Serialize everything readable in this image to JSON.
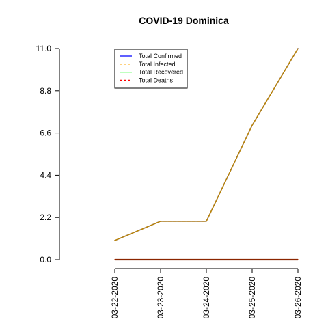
{
  "chart_data": {
    "type": "line",
    "title": "COVID-19 Dominica",
    "xlabel": "",
    "ylabel": "",
    "categories": [
      "03-22-2020",
      "03-23-2020",
      "03-24-2020",
      "03-25-2020",
      "03-26-2020"
    ],
    "ylim": [
      0,
      11
    ],
    "y_ticks": [
      "0.0",
      "2.2",
      "4.4",
      "6.6",
      "8.8",
      "11.0"
    ],
    "grid": false,
    "legend_position": "top-left",
    "series": [
      {
        "name": "Total Confirmed",
        "values": [
          1,
          2,
          2,
          7,
          11
        ],
        "color": "#0000ff",
        "dash": "solid"
      },
      {
        "name": "Total Infected",
        "values": [
          1,
          2,
          2,
          7,
          11
        ],
        "color": "#ffa500",
        "dash": "dashed"
      },
      {
        "name": "Total Recovered",
        "values": [
          0,
          0,
          0,
          0,
          0
        ],
        "color": "#00ff00",
        "dash": "solid"
      },
      {
        "name": "Total Deaths",
        "values": [
          0,
          0,
          0,
          0,
          0
        ],
        "color": "#ff0000",
        "dash": "dashed"
      }
    ],
    "overlay_colors": {
      "cases_line": "#b8860b",
      "zero_line": "#8b2500"
    }
  }
}
